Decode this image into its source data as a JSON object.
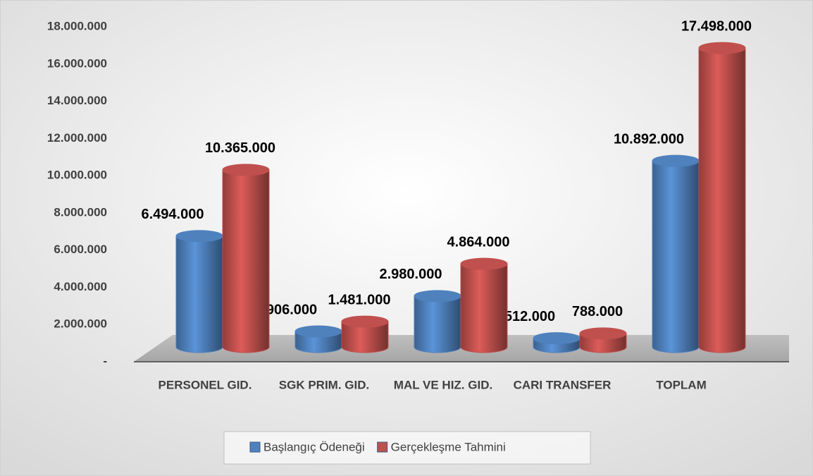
{
  "chart_data": {
    "type": "bar3d",
    "categories": [
      "PERSONEL GID.",
      "SGK PRIM. GID.",
      "MAL VE HIZ. GID.",
      "CARI TRANSFER",
      "TOPLAM"
    ],
    "series": [
      {
        "name": "Başlangıç Ödeneği",
        "color": "#4f81bd",
        "values": [
          6494000,
          906000,
          2980000,
          512000,
          10892000
        ],
        "value_labels": [
          "6.494.000",
          "906.000",
          "2.980.000",
          "512.000",
          "10.892.000"
        ]
      },
      {
        "name": "Gerçekleşme Tahmini",
        "color": "#c0504d",
        "values": [
          10365000,
          1481000,
          4864000,
          788000,
          17498000
        ],
        "value_labels": [
          "10.365.000",
          "1.481.000",
          "4.864.000",
          "788.000",
          "17.498.000"
        ]
      }
    ],
    "ylim": [
      0,
      18000000
    ],
    "yticks": [
      {
        "value": 0,
        "label": "-"
      },
      {
        "value": 2000000,
        "label": "2.000.000"
      },
      {
        "value": 4000000,
        "label": "4.000.000"
      },
      {
        "value": 6000000,
        "label": "6.000.000"
      },
      {
        "value": 8000000,
        "label": "8.000.000"
      },
      {
        "value": 10000000,
        "label": "10.000.000"
      },
      {
        "value": 12000000,
        "label": "12.000.000"
      },
      {
        "value": 14000000,
        "label": "14.000.000"
      },
      {
        "value": 16000000,
        "label": "16.000.000"
      },
      {
        "value": 18000000,
        "label": "18.000.000"
      }
    ],
    "legend": "bottom"
  }
}
